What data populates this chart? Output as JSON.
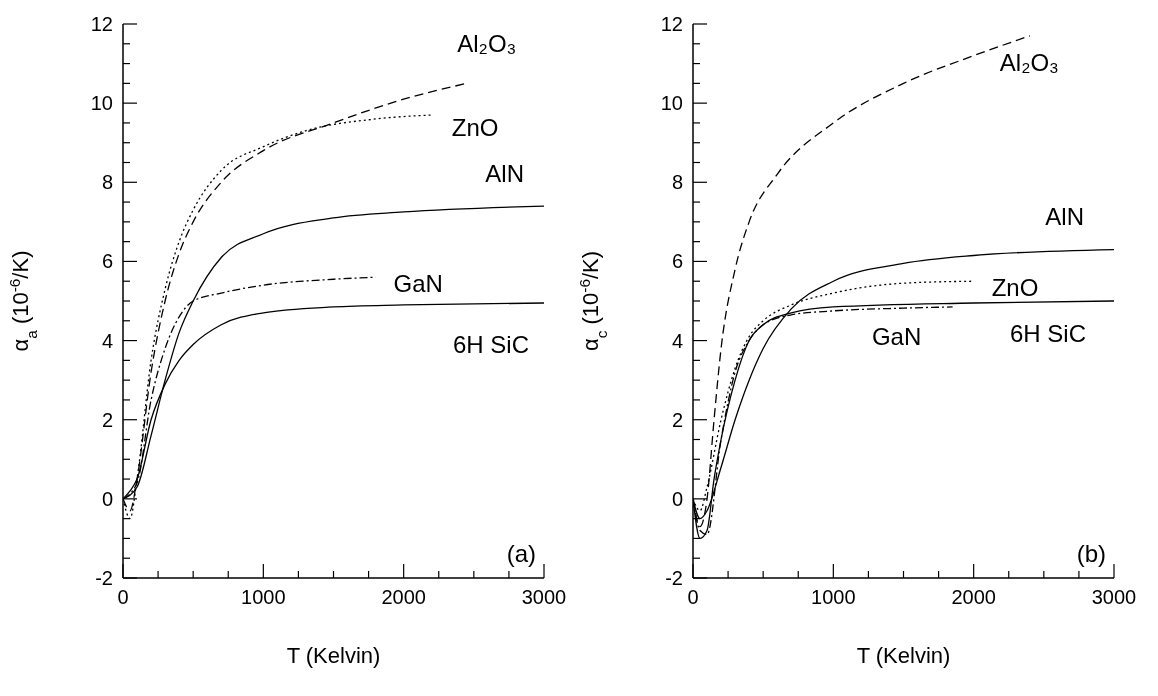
{
  "chart_data": [
    {
      "type": "line",
      "xlabel": "T (Kelvin)",
      "ylabel": "α$_{a}$ (10$^{-6}$/K)",
      "annotations": [
        "(a)"
      ],
      "xlim": [
        0,
        3000
      ],
      "ylim": [
        -2,
        12
      ],
      "xticks": [
        0,
        {
          "value": 250,
          "label": null
        },
        {
          "value": 500,
          "label": null
        },
        {
          "value": 750,
          "label": null
        },
        1000,
        {
          "value": 1250,
          "label": null
        },
        {
          "value": 1500,
          "label": null
        },
        {
          "value": 1750,
          "label": null
        },
        2000,
        {
          "value": 2250,
          "label": null
        },
        {
          "value": 2500,
          "label": null
        },
        {
          "value": 2750,
          "label": null
        },
        3000
      ],
      "yticks": [
        -2,
        {
          "value": -1.5,
          "label": null
        },
        {
          "value": -1,
          "label": null
        },
        {
          "value": -0.5,
          "label": null
        },
        0,
        {
          "value": 0.5,
          "label": null
        },
        {
          "value": 1,
          "label": null
        },
        {
          "value": 1.5,
          "label": null
        },
        2,
        {
          "value": 2.5,
          "label": null
        },
        {
          "value": 3,
          "label": null
        },
        {
          "value": 3.5,
          "label": null
        },
        4,
        {
          "value": 4.5,
          "label": null
        },
        {
          "value": 5,
          "label": null
        },
        {
          "value": 5.5,
          "label": null
        },
        6,
        {
          "value": 6.5,
          "label": null
        },
        {
          "value": 7,
          "label": null
        },
        {
          "value": 7.5,
          "label": null
        },
        8,
        {
          "value": 8.5,
          "label": null
        },
        {
          "value": 9,
          "label": null
        },
        {
          "value": 9.5,
          "label": null
        },
        10,
        {
          "value": 10.5,
          "label": null
        },
        {
          "value": 11,
          "label": null
        },
        {
          "value": 11.5,
          "label": null
        },
        12
      ],
      "series": [
        {
          "name": "Al₂O₃",
          "color": "#000000",
          "line_style": "dashed",
          "x": [
            0,
            50,
            100,
            200,
            300,
            400,
            500,
            700,
            1000,
            1500,
            2000,
            2450
          ],
          "values": [
            0,
            -0.3,
            0.5,
            3.2,
            5.0,
            6.2,
            7.0,
            8.0,
            8.8,
            9.5,
            10.1,
            10.5
          ]
        },
        {
          "name": "ZnO",
          "color": "#000000",
          "line_style": "dotted",
          "x": [
            0,
            50,
            100,
            200,
            300,
            400,
            500,
            700,
            1000,
            1300,
            1800,
            2200
          ],
          "values": [
            0,
            -0.5,
            0.5,
            3.5,
            5.3,
            6.5,
            7.3,
            8.3,
            8.9,
            9.3,
            9.6,
            9.7
          ]
        },
        {
          "name": "AlN",
          "color": "#000000",
          "line_style": "solid",
          "x": [
            0,
            100,
            200,
            300,
            400,
            500,
            700,
            1000,
            1500,
            2000,
            3000
          ],
          "values": [
            0,
            0.3,
            1.6,
            3.0,
            4.2,
            5.0,
            6.1,
            6.7,
            7.1,
            7.25,
            7.4
          ]
        },
        {
          "name": "GaN",
          "color": "#000000",
          "line_style": "dashdot",
          "x": [
            0,
            100,
            200,
            300,
            400,
            500,
            700,
            1000,
            1500,
            1800
          ],
          "values": [
            0,
            0.4,
            2.5,
            3.8,
            4.6,
            5.0,
            5.2,
            5.4,
            5.55,
            5.6
          ]
        },
        {
          "name": "6H SiC",
          "color": "#000000",
          "line_style": "solid",
          "x": [
            0,
            50,
            100,
            200,
            300,
            400,
            500,
            700,
            1000,
            1500,
            2000,
            3000
          ],
          "values": [
            0,
            0.2,
            0.5,
            2.0,
            2.9,
            3.5,
            3.9,
            4.4,
            4.7,
            4.85,
            4.9,
            4.95
          ]
        }
      ]
    },
    {
      "type": "line",
      "xlabel": "T (Kelvin)",
      "ylabel": "α$_{c}$ (10$^{-6}$/K)",
      "annotations": [
        "(b)"
      ],
      "xlim": [
        0,
        3000
      ],
      "ylim": [
        -2,
        12
      ],
      "xticks": [
        0,
        {
          "value": 250,
          "label": null
        },
        {
          "value": 500,
          "label": null
        },
        {
          "value": 750,
          "label": null
        },
        1000,
        {
          "value": 1250,
          "label": null
        },
        {
          "value": 1500,
          "label": null
        },
        {
          "value": 1750,
          "label": null
        },
        2000,
        {
          "value": 2250,
          "label": null
        },
        {
          "value": 2500,
          "label": null
        },
        {
          "value": 2750,
          "label": null
        },
        3000
      ],
      "yticks": [
        -2,
        {
          "value": -1.5,
          "label": null
        },
        {
          "value": -1,
          "label": null
        },
        {
          "value": -0.5,
          "label": null
        },
        0,
        {
          "value": 0.5,
          "label": null
        },
        {
          "value": 1,
          "label": null
        },
        {
          "value": 1.5,
          "label": null
        },
        2,
        {
          "value": 2.5,
          "label": null
        },
        {
          "value": 3,
          "label": null
        },
        {
          "value": 3.5,
          "label": null
        },
        4,
        {
          "value": 4.5,
          "label": null
        },
        {
          "value": 5,
          "label": null
        },
        {
          "value": 5.5,
          "label": null
        },
        6,
        {
          "value": 6.5,
          "label": null
        },
        {
          "value": 7,
          "label": null
        },
        {
          "value": 7.5,
          "label": null
        },
        8,
        {
          "value": 8.5,
          "label": null
        },
        {
          "value": 9,
          "label": null
        },
        {
          "value": 9.5,
          "label": null
        },
        10,
        {
          "value": 10.5,
          "label": null
        },
        {
          "value": 11,
          "label": null
        },
        {
          "value": 11.5,
          "label": null
        },
        12
      ],
      "series": [
        {
          "name": "Al₂O₃",
          "color": "#000000",
          "line_style": "dashed",
          "x": [
            0,
            50,
            100,
            150,
            200,
            300,
            400,
            600,
            1000,
            1500,
            2000,
            2400
          ],
          "values": [
            0,
            -0.7,
            0,
            2.0,
            3.8,
            5.8,
            7.0,
            8.2,
            9.5,
            10.5,
            11.2,
            11.7
          ]
        },
        {
          "name": "AlN",
          "color": "#000000",
          "line_style": "solid",
          "x": [
            0,
            50,
            100,
            200,
            300,
            400,
            500,
            700,
            1000,
            1500,
            2000,
            3000
          ],
          "values": [
            0,
            -0.5,
            -0.3,
            0.8,
            2.0,
            3.0,
            3.8,
            4.8,
            5.5,
            5.95,
            6.15,
            6.3
          ]
        },
        {
          "name": "ZnO",
          "color": "#000000",
          "line_style": "dotted",
          "x": [
            0,
            50,
            100,
            200,
            300,
            400,
            500,
            700,
            1000,
            1500,
            2000
          ],
          "values": [
            0,
            -0.3,
            0.3,
            2.0,
            3.3,
            4.1,
            4.5,
            4.9,
            5.2,
            5.45,
            5.5
          ]
        },
        {
          "name": "GaN",
          "color": "#000000",
          "line_style": "dashdot",
          "x": [
            0,
            50,
            100,
            200,
            300,
            400,
            500,
            700,
            1000,
            1500,
            1850
          ],
          "values": [
            0,
            -0.8,
            -0.9,
            1.5,
            3.2,
            4.0,
            4.4,
            4.65,
            4.75,
            4.82,
            4.85
          ]
        },
        {
          "name": "6H SiC",
          "color": "#000000",
          "line_style": "solid",
          "x": [
            0,
            50,
            100,
            150,
            200,
            300,
            400,
            500,
            700,
            1000,
            2000,
            3000
          ],
          "values": [
            0,
            -1.0,
            -0.8,
            0.5,
            1.5,
            3.0,
            4.0,
            4.4,
            4.7,
            4.85,
            4.95,
            5.0
          ]
        }
      ]
    }
  ]
}
